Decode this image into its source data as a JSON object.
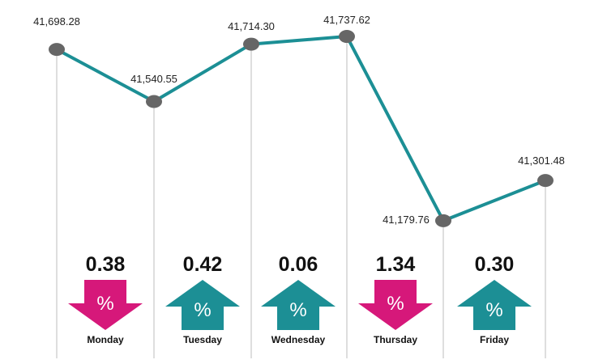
{
  "colors": {
    "line": "#1c8f95",
    "point": "#666666",
    "gridline": "#bdbdbd",
    "down": "#d6187a",
    "up": "#1c8f95"
  },
  "chart_data": {
    "type": "line",
    "categories": [
      "",
      "Monday",
      "Tuesday",
      "Wednesday",
      "Thursday",
      "Friday"
    ],
    "values": [
      41698.28,
      41540.55,
      41714.3,
      41737.62,
      41179.76,
      41301.48
    ],
    "point_labels": [
      "41,698.28",
      "41,540.55",
      "41,714.30",
      "41,737.62",
      "41,179.76",
      "41,301.48"
    ],
    "ylim": [
      41150,
      41750
    ],
    "days": [
      {
        "name": "Monday",
        "change": "0.38",
        "direction": "down",
        "symbol": "%"
      },
      {
        "name": "Tuesday",
        "change": "0.42",
        "direction": "up",
        "symbol": "%"
      },
      {
        "name": "Wednesday",
        "change": "0.06",
        "direction": "up",
        "symbol": "%"
      },
      {
        "name": "Thursday",
        "change": "1.34",
        "direction": "down",
        "symbol": "%"
      },
      {
        "name": "Friday",
        "change": "0.30",
        "direction": "up",
        "symbol": "%"
      }
    ]
  }
}
